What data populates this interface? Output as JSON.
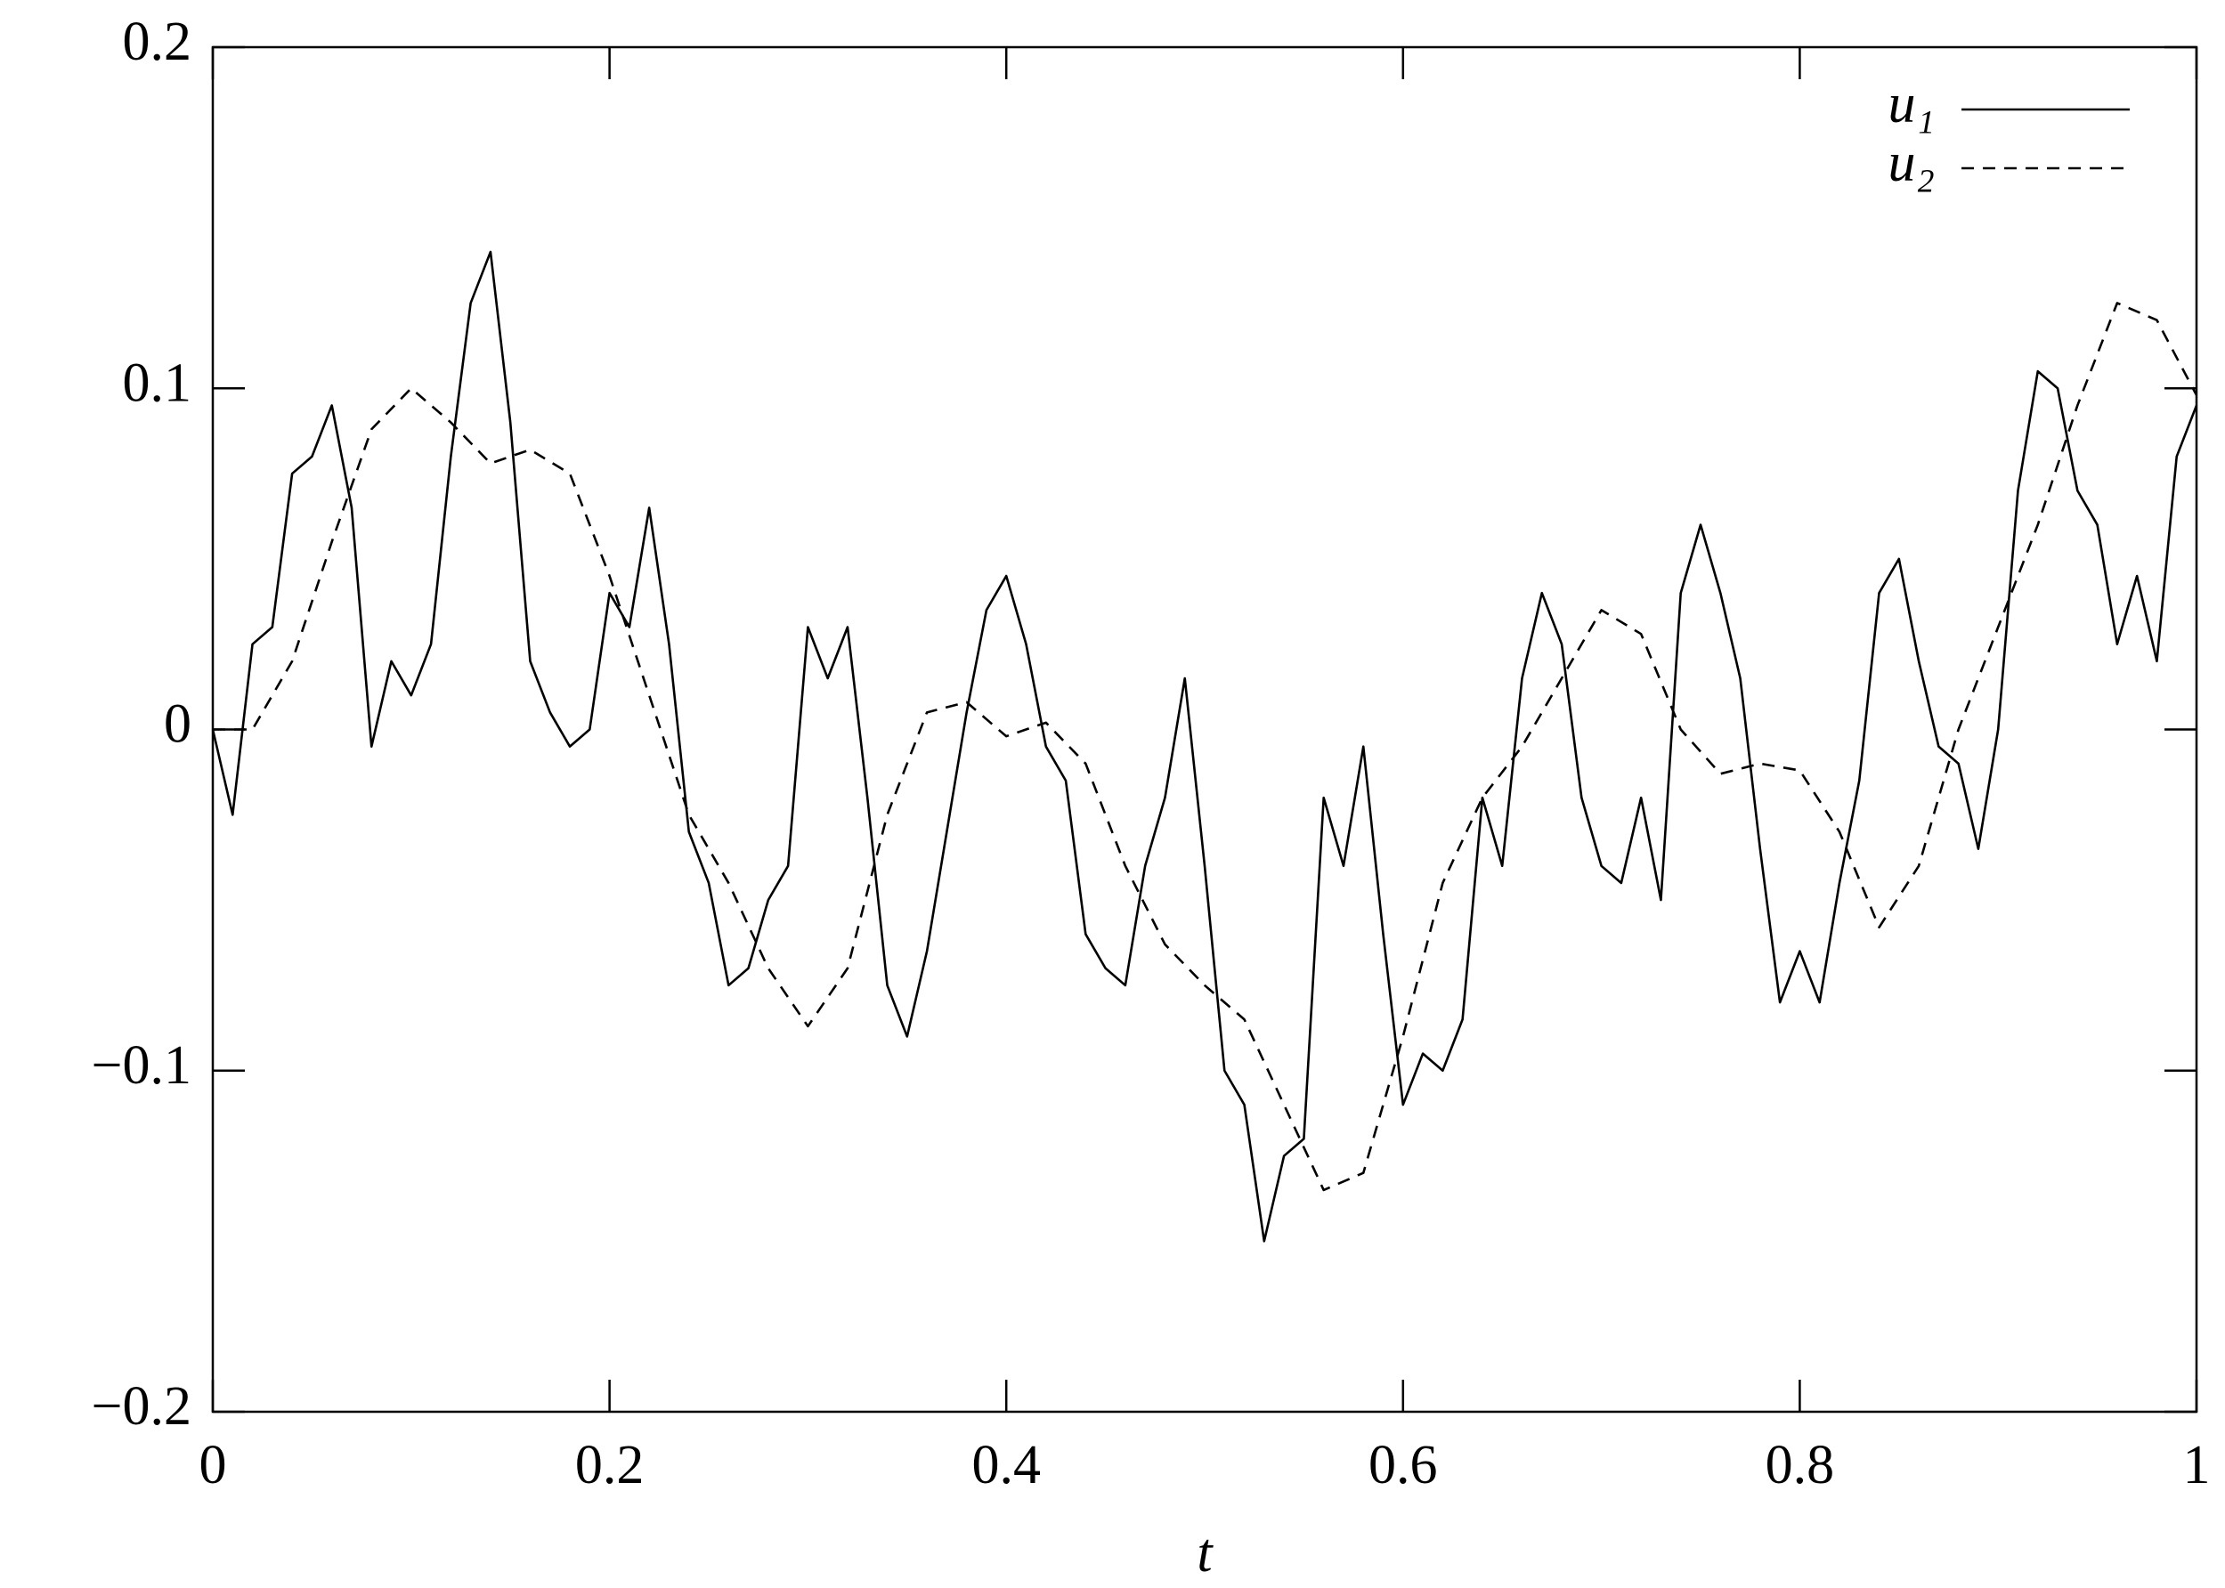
{
  "chart_data": {
    "type": "line",
    "xlabel": "t",
    "xlim": [
      0,
      1
    ],
    "xticks": [
      0,
      0.2,
      0.4,
      0.6,
      0.8,
      1
    ],
    "ylim": [
      -0.2,
      0.2
    ],
    "yticks": [
      {
        "value": -0.2,
        "label": "−0.2"
      },
      {
        "value": -0.1,
        "label": "−0.1"
      },
      0,
      0.1,
      0.2
    ],
    "legend": "upper right",
    "series": [
      {
        "name": "u₁",
        "color": "#000000",
        "linestyle": "solid",
        "x": [
          0,
          0.01,
          0.02,
          0.03,
          0.04,
          0.05,
          0.06,
          0.07,
          0.08,
          0.09,
          0.1,
          0.11,
          0.12,
          0.13,
          0.14,
          0.15,
          0.16,
          0.17,
          0.18,
          0.19,
          0.2,
          0.21,
          0.22,
          0.23,
          0.24,
          0.25,
          0.26,
          0.27,
          0.28,
          0.29,
          0.3,
          0.31,
          0.32,
          0.33,
          0.34,
          0.35,
          0.36,
          0.37,
          0.38,
          0.39,
          0.4,
          0.41,
          0.42,
          0.43,
          0.44,
          0.45,
          0.46,
          0.47,
          0.48,
          0.49,
          0.5,
          0.51,
          0.52,
          0.53,
          0.54,
          0.55,
          0.56,
          0.57,
          0.58,
          0.59,
          0.6,
          0.61,
          0.62,
          0.63,
          0.64,
          0.65,
          0.66,
          0.67,
          0.68,
          0.69,
          0.7,
          0.71,
          0.72,
          0.73,
          0.74,
          0.75,
          0.76,
          0.77,
          0.78,
          0.79,
          0.8,
          0.81,
          0.82,
          0.83,
          0.84,
          0.85,
          0.86,
          0.87,
          0.88,
          0.89,
          0.9,
          0.91,
          0.92,
          0.93,
          0.94,
          0.95,
          0.96,
          0.97,
          0.98,
          0.99,
          1
        ],
        "values": [
          0,
          -0.025,
          0.025,
          0.03,
          0.075,
          0.08,
          0.095,
          0.065,
          -0.005,
          0.02,
          0.01,
          0.025,
          0.08,
          0.125,
          0.14,
          0.09,
          0.02,
          0.005,
          -0.005,
          0,
          0.04,
          0.03,
          0.065,
          0.025,
          -0.03,
          -0.045,
          -0.075,
          -0.07,
          -0.05,
          -0.04,
          0.03,
          0.015,
          0.03,
          -0.02,
          -0.075,
          -0.09,
          -0.065,
          -0.03,
          0.005,
          0.035,
          0.045,
          0.025,
          -0.005,
          -0.015,
          -0.06,
          -0.07,
          -0.075,
          -0.04,
          -0.02,
          0.015,
          -0.04,
          -0.1,
          -0.11,
          -0.15,
          -0.125,
          -0.12,
          -0.02,
          -0.04,
          -0.005,
          -0.06,
          -0.11,
          -0.095,
          -0.1,
          -0.085,
          -0.02,
          -0.04,
          0.015,
          0.04,
          0.025,
          -0.02,
          -0.04,
          -0.045,
          -0.02,
          -0.05,
          0.04,
          0.06,
          0.04,
          0.015,
          -0.035,
          -0.08,
          -0.065,
          -0.08,
          -0.045,
          -0.015,
          0.04,
          0.05,
          0.02,
          -0.005,
          -0.01,
          -0.035,
          0,
          0.07,
          0.105,
          0.1,
          0.07,
          0.06,
          0.025,
          0.045,
          0.02,
          0.08,
          0.095
        ]
      },
      {
        "name": "u₂",
        "color": "#000000",
        "linestyle": "dashed",
        "x": [
          0,
          0.02,
          0.04,
          0.06,
          0.08,
          0.1,
          0.12,
          0.14,
          0.16,
          0.18,
          0.2,
          0.22,
          0.24,
          0.26,
          0.28,
          0.3,
          0.32,
          0.34,
          0.36,
          0.38,
          0.4,
          0.42,
          0.44,
          0.46,
          0.48,
          0.5,
          0.52,
          0.54,
          0.56,
          0.58,
          0.6,
          0.62,
          0.64,
          0.66,
          0.68,
          0.7,
          0.72,
          0.74,
          0.76,
          0.78,
          0.8,
          0.82,
          0.84,
          0.86,
          0.88,
          0.9,
          0.92,
          0.94,
          0.96,
          0.98,
          1
        ],
        "values": [
          0,
          0,
          0.02,
          0.055,
          0.088,
          0.1,
          0.09,
          0.078,
          0.082,
          0.075,
          0.045,
          0.01,
          -0.025,
          -0.045,
          -0.07,
          -0.087,
          -0.07,
          -0.025,
          0.005,
          0.008,
          -0.002,
          0.002,
          -0.01,
          -0.04,
          -0.063,
          -0.075,
          -0.085,
          -0.11,
          -0.135,
          -0.13,
          -0.09,
          -0.045,
          -0.02,
          -0.005,
          0.015,
          0.035,
          0.028,
          0,
          -0.013,
          -0.01,
          -0.012,
          -0.03,
          -0.058,
          -0.04,
          0,
          0.03,
          0.06,
          0.095,
          0.125,
          0.12,
          0.098
        ]
      }
    ]
  }
}
